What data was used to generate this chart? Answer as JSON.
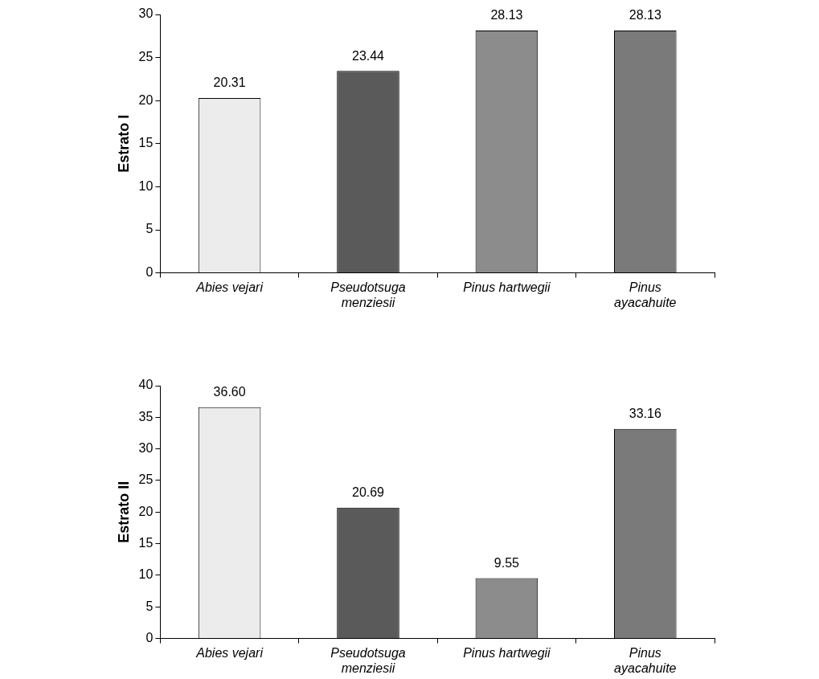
{
  "chart_data": [
    {
      "type": "bar",
      "ylabel": "Estrato I",
      "categories": [
        "Abies vejari",
        "Pseudotsuga menziesii",
        "Pinus hartwegii",
        "Pinus ayacahuite"
      ],
      "values": [
        20.31,
        23.44,
        28.13,
        28.13
      ],
      "value_labels": [
        "20.31",
        "23.44",
        "28.13",
        "28.13"
      ],
      "colors": [
        "#ececec",
        "#5a5a5a",
        "#8c8c8c",
        "#7a7a7a"
      ],
      "ylim": [
        0,
        30
      ],
      "yticks": [
        0,
        5,
        10,
        15,
        20,
        25,
        30
      ],
      "grid": false,
      "legend": false
    },
    {
      "type": "bar",
      "ylabel": "Estrato II",
      "categories": [
        "Abies vejari",
        "Pseudotsuga menziesii",
        "Pinus hartwegii",
        "Pinus ayacahuite"
      ],
      "values": [
        36.6,
        20.69,
        9.55,
        33.16
      ],
      "value_labels": [
        "36.60",
        "20.69",
        "9.55",
        "33.16"
      ],
      "colors": [
        "#ececec",
        "#5a5a5a",
        "#8c8c8c",
        "#7a7a7a"
      ],
      "ylim": [
        0,
        40
      ],
      "yticks": [
        0,
        5,
        10,
        15,
        20,
        25,
        30,
        35,
        40
      ],
      "grid": false,
      "legend": false
    }
  ]
}
